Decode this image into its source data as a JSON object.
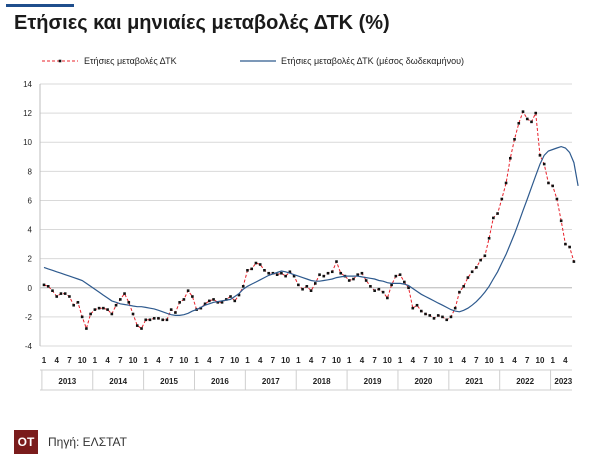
{
  "header": {
    "title": "Ετήσιες και μηνιαίες μεταβολές ΔΤΚ (%)"
  },
  "footer": {
    "logo_text": "ΟΤ",
    "source": "Πηγή: ΕΛΣΤΑΤ"
  },
  "chart_data": {
    "type": "line",
    "x_tick_labels": [
      "1",
      "4",
      "7",
      "10"
    ],
    "years": [
      "2013",
      "2014",
      "2015",
      "2016",
      "2017",
      "2018",
      "2019",
      "2020",
      "2021",
      "2022",
      "2023"
    ],
    "ylim": [
      -4,
      14
    ],
    "yticks": [
      -4,
      -2,
      0,
      2,
      4,
      6,
      8,
      10,
      12,
      14
    ],
    "grid": true,
    "legend_position": "top",
    "series": [
      {
        "name": "Ετήσιες μεταβολές ΔΤΚ",
        "color": "#e8202a",
        "marker_color": "#111111",
        "style": "dashed-with-markers",
        "start": "2013-01",
        "values": [
          0.2,
          0.1,
          -0.2,
          -0.6,
          -0.4,
          -0.4,
          -0.6,
          -1.2,
          -1.0,
          -2.0,
          -2.8,
          -1.8,
          -1.5,
          -1.4,
          -1.4,
          -1.5,
          -1.8,
          -1.2,
          -0.8,
          -0.4,
          -1.0,
          -1.8,
          -2.6,
          -2.8,
          -2.2,
          -2.2,
          -2.1,
          -2.1,
          -2.2,
          -2.2,
          -1.5,
          -1.7,
          -1.0,
          -0.8,
          -0.2,
          -0.6,
          -1.5,
          -1.4,
          -1.1,
          -0.9,
          -0.8,
          -1.0,
          -1.0,
          -0.8,
          -0.6,
          -0.9,
          -0.5,
          0.1,
          1.2,
          1.3,
          1.7,
          1.6,
          1.2,
          1.0,
          1.0,
          0.9,
          1.0,
          0.8,
          1.1,
          0.8,
          0.2,
          -0.1,
          0.1,
          -0.2,
          0.3,
          0.9,
          0.8,
          1.0,
          1.1,
          1.8,
          1.0,
          0.8,
          0.5,
          0.6,
          0.9,
          1.0,
          0.5,
          0.1,
          -0.2,
          -0.1,
          -0.3,
          -0.7,
          0.2,
          0.8,
          0.9,
          0.4,
          0.0,
          -1.4,
          -1.2,
          -1.6,
          -1.8,
          -1.9,
          -2.1,
          -1.9,
          -2.0,
          -2.2,
          -2.0,
          -1.4,
          -0.3,
          0.1,
          0.7,
          1.1,
          1.4,
          1.9,
          2.2,
          3.4,
          4.8,
          5.1,
          6.1,
          7.2,
          8.9,
          10.2,
          11.3,
          12.1,
          11.6,
          11.4,
          12.0,
          9.1,
          8.5,
          7.2,
          7.0,
          6.1,
          4.6,
          3.0,
          2.8,
          1.8
        ]
      },
      {
        "name": "Ετήσιες μεταβολές ΔΤΚ (μέσος δωδεκαμήνου)",
        "color": "#2e5a8e",
        "style": "solid",
        "start": "2013-01",
        "values": [
          1.4,
          1.3,
          1.2,
          1.1,
          1.0,
          0.9,
          0.8,
          0.7,
          0.6,
          0.5,
          0.3,
          0.1,
          -0.1,
          -0.3,
          -0.5,
          -0.7,
          -0.9,
          -1.0,
          -1.1,
          -1.15,
          -1.2,
          -1.25,
          -1.3,
          -1.3,
          -1.35,
          -1.4,
          -1.45,
          -1.55,
          -1.65,
          -1.75,
          -1.85,
          -1.9,
          -1.9,
          -1.85,
          -1.75,
          -1.6,
          -1.5,
          -1.35,
          -1.2,
          -1.1,
          -1.0,
          -0.95,
          -0.9,
          -0.85,
          -0.8,
          -0.6,
          -0.4,
          -0.1,
          0.1,
          0.25,
          0.4,
          0.55,
          0.7,
          0.85,
          0.95,
          1.05,
          1.15,
          1.1,
          1.0,
          0.9,
          0.8,
          0.7,
          0.6,
          0.5,
          0.45,
          0.45,
          0.5,
          0.55,
          0.6,
          0.7,
          0.75,
          0.8,
          0.8,
          0.8,
          0.8,
          0.75,
          0.7,
          0.65,
          0.6,
          0.5,
          0.45,
          0.35,
          0.3,
          0.3,
          0.3,
          0.25,
          0.15,
          -0.05,
          -0.25,
          -0.45,
          -0.6,
          -0.75,
          -0.9,
          -1.05,
          -1.2,
          -1.35,
          -1.5,
          -1.6,
          -1.65,
          -1.55,
          -1.4,
          -1.2,
          -0.95,
          -0.65,
          -0.3,
          0.1,
          0.6,
          1.1,
          1.7,
          2.3,
          3.0,
          3.7,
          4.5,
          5.3,
          6.1,
          6.9,
          7.7,
          8.5,
          9.1,
          9.4,
          9.5,
          9.6,
          9.7,
          9.6,
          9.3,
          8.6,
          7.0
        ]
      }
    ]
  }
}
